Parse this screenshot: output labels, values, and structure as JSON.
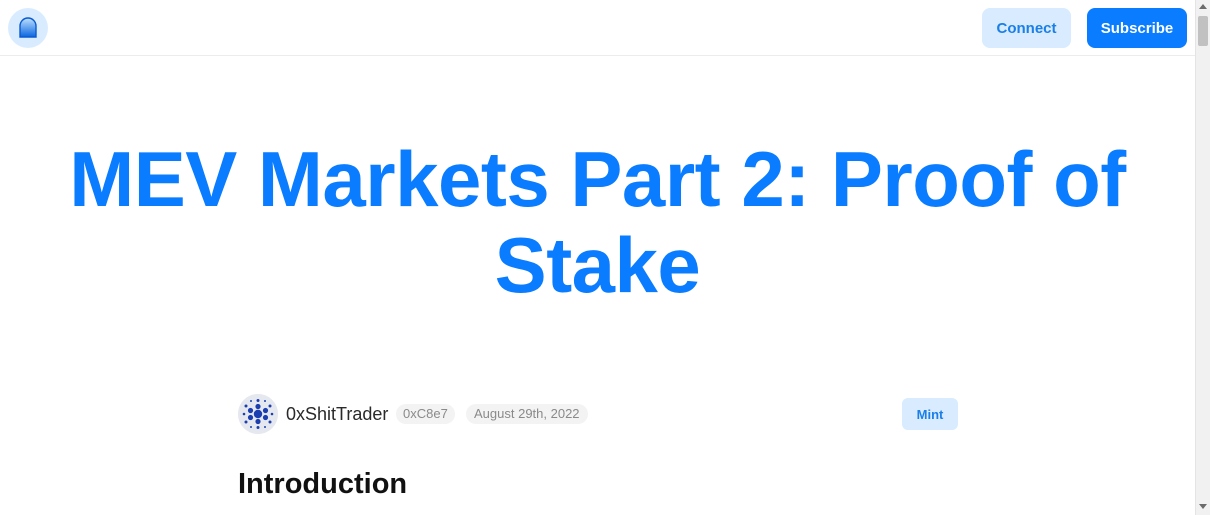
{
  "header": {
    "logo_icon": "mirror-logo-icon",
    "connect_label": "Connect",
    "subscribe_label": "Subscribe"
  },
  "article": {
    "title": "MEV Markets Part 2: Proof of Stake",
    "author": "0xShitTrader",
    "address": "0xC8e7",
    "date": "August 29th, 2022",
    "mint_label": "Mint",
    "first_heading": "Introduction"
  },
  "colors": {
    "accent": "#0a7cff",
    "accent_light": "#d8ebff",
    "badge_bg": "#f3f3f3"
  }
}
